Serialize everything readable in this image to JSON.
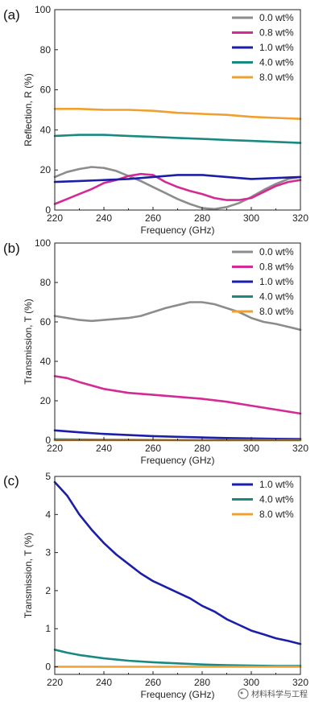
{
  "chart_data": [
    {
      "type": "line",
      "panel_label": "(a)",
      "xlabel": "Frequency (GHz)",
      "ylabel": "Reflection, R (%)",
      "xlim": [
        220,
        320
      ],
      "ylim": [
        0,
        100
      ],
      "x_ticks": [
        220,
        240,
        260,
        280,
        300,
        320
      ],
      "y_ticks": [
        0,
        20,
        40,
        60,
        80,
        100
      ],
      "legend_position": "top-right",
      "series": [
        {
          "name": "0.0 wt%",
          "color": "#8c8c8c",
          "x": [
            220,
            225,
            230,
            235,
            240,
            245,
            250,
            255,
            260,
            265,
            270,
            275,
            280,
            285,
            290,
            295,
            300,
            305,
            310,
            315,
            320
          ],
          "y": [
            16.5,
            19,
            20.5,
            21.5,
            21,
            19.5,
            17,
            14.5,
            11.5,
            8.5,
            5.5,
            3,
            1,
            0.5,
            1.5,
            3.5,
            6.5,
            10,
            13,
            15.5,
            16.5
          ]
        },
        {
          "name": "0.8 wt%",
          "color": "#d42a96",
          "x": [
            220,
            225,
            230,
            235,
            240,
            245,
            250,
            255,
            260,
            265,
            270,
            275,
            280,
            285,
            290,
            295,
            300,
            305,
            310,
            315,
            320
          ],
          "y": [
            3,
            5.5,
            8,
            10.5,
            13.5,
            15,
            17,
            18,
            17.5,
            14,
            11.5,
            9.5,
            8,
            6,
            5,
            5,
            6,
            9,
            12,
            14,
            15
          ]
        },
        {
          "name": "1.0 wt%",
          "color": "#1b1fa8",
          "x": [
            220,
            230,
            240,
            250,
            260,
            270,
            280,
            290,
            300,
            310,
            320
          ],
          "y": [
            14,
            14.5,
            15,
            15.5,
            16.5,
            17.5,
            17.5,
            16.5,
            15.5,
            16,
            16.5
          ]
        },
        {
          "name": "4.0 wt%",
          "color": "#188a82",
          "x": [
            220,
            230,
            240,
            250,
            260,
            270,
            280,
            290,
            300,
            310,
            320
          ],
          "y": [
            37,
            37.5,
            37.5,
            37,
            36.5,
            36,
            35.5,
            35,
            34.5,
            34,
            33.5
          ]
        },
        {
          "name": "8.0 wt%",
          "color": "#f0a030",
          "x": [
            220,
            230,
            240,
            250,
            260,
            270,
            280,
            290,
            300,
            310,
            320
          ],
          "y": [
            50.5,
            50.5,
            50,
            50,
            49.5,
            48.5,
            48,
            47.5,
            46.5,
            46,
            45.5
          ]
        }
      ]
    },
    {
      "type": "line",
      "panel_label": "(b)",
      "xlabel": "Frequency (GHz)",
      "ylabel": "Transmission, T (%)",
      "xlim": [
        220,
        320
      ],
      "ylim": [
        0,
        100
      ],
      "x_ticks": [
        220,
        240,
        260,
        280,
        300,
        320
      ],
      "y_ticks": [
        0,
        20,
        40,
        60,
        80,
        100
      ],
      "legend_position": "top-right",
      "series": [
        {
          "name": "0.0 wt%",
          "color": "#8c8c8c",
          "x": [
            220,
            225,
            230,
            235,
            240,
            245,
            250,
            255,
            260,
            265,
            270,
            275,
            280,
            285,
            290,
            295,
            300,
            305,
            310,
            315,
            320
          ],
          "y": [
            63,
            62,
            61,
            60.5,
            61,
            61.5,
            62,
            63,
            65,
            67,
            68.5,
            70,
            70,
            69,
            67,
            65,
            62,
            60,
            59,
            57.5,
            56
          ]
        },
        {
          "name": "0.8 wt%",
          "color": "#d42a96",
          "x": [
            220,
            225,
            230,
            240,
            250,
            260,
            270,
            280,
            290,
            300,
            310,
            320
          ],
          "y": [
            32.5,
            31.5,
            29.5,
            26,
            24,
            23,
            22,
            21,
            19.5,
            17.5,
            15.5,
            13.5
          ]
        },
        {
          "name": "1.0 wt%",
          "color": "#1b1fa8",
          "x": [
            220,
            230,
            240,
            250,
            260,
            270,
            280,
            290,
            300,
            310,
            320
          ],
          "y": [
            5,
            4,
            3.2,
            2.6,
            2.1,
            1.7,
            1.4,
            1.1,
            0.9,
            0.7,
            0.6
          ]
        },
        {
          "name": "4.0 wt%",
          "color": "#188a82",
          "x": [
            220,
            240,
            260,
            280,
            300,
            320
          ],
          "y": [
            0.45,
            0.25,
            0.12,
            0.06,
            0.03,
            0.02
          ]
        },
        {
          "name": "8.0 wt%",
          "color": "#f0a030",
          "x": [
            220,
            320
          ],
          "y": [
            0,
            0
          ]
        }
      ]
    },
    {
      "type": "line",
      "panel_label": "(c)",
      "xlabel": "Frequency (GHz)",
      "ylabel": "Transmission, T (%)",
      "xlim": [
        220,
        320
      ],
      "ylim": [
        -0.2,
        5
      ],
      "x_ticks": [
        220,
        240,
        260,
        280,
        300,
        320
      ],
      "y_ticks": [
        0,
        1,
        2,
        3,
        4,
        5
      ],
      "legend_position": "top-right",
      "series": [
        {
          "name": "1.0 wt%",
          "color": "#1b1fa8",
          "x": [
            220,
            225,
            230,
            235,
            240,
            245,
            250,
            255,
            260,
            265,
            270,
            275,
            280,
            285,
            290,
            295,
            300,
            305,
            310,
            315,
            320
          ],
          "y": [
            4.85,
            4.5,
            4.0,
            3.6,
            3.25,
            2.95,
            2.7,
            2.45,
            2.25,
            2.1,
            1.95,
            1.8,
            1.6,
            1.45,
            1.25,
            1.1,
            0.95,
            0.85,
            0.75,
            0.68,
            0.6
          ]
        },
        {
          "name": "4.0 wt%",
          "color": "#188a82",
          "x": [
            220,
            225,
            230,
            240,
            250,
            260,
            270,
            280,
            290,
            300,
            310,
            320
          ],
          "y": [
            0.45,
            0.37,
            0.31,
            0.22,
            0.16,
            0.12,
            0.09,
            0.06,
            0.04,
            0.03,
            0.02,
            0.02
          ]
        },
        {
          "name": "8.0 wt%",
          "color": "#f0a030",
          "x": [
            220,
            320
          ],
          "y": [
            0,
            0
          ]
        }
      ]
    }
  ],
  "watermark": {
    "text": "材料科学与工程"
  }
}
